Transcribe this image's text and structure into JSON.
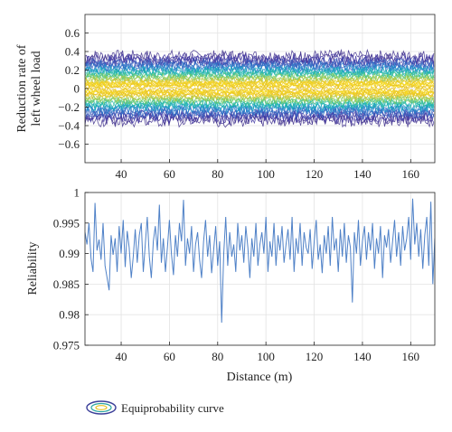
{
  "chart_data": [
    {
      "type": "contour",
      "ylabel_lines": [
        "Reduction rate of",
        "left wheel load"
      ],
      "xlim": [
        25,
        170
      ],
      "ylim": [
        -0.8,
        0.8
      ],
      "xticks": [
        40,
        60,
        80,
        100,
        120,
        140,
        160
      ],
      "yticks": [
        -0.6,
        -0.4,
        -0.2,
        0,
        0.2,
        0.4,
        0.6
      ],
      "ytick_labels": [
        "−0.6",
        "−0.4",
        "−0.2",
        "0",
        "0.2",
        "0.4",
        "0.6"
      ],
      "band": {
        "center": 0,
        "outer_half_width": 0.35,
        "core_half_width": 0.07
      },
      "grid": true
    },
    {
      "type": "line",
      "xlabel": "Distance (m)",
      "ylabel": "Reliability",
      "xlim": [
        25,
        170
      ],
      "ylim": [
        0.975,
        1.0
      ],
      "xticks": [
        40,
        60,
        80,
        100,
        120,
        140,
        160
      ],
      "yticks": [
        0.975,
        0.98,
        0.985,
        0.99,
        0.995,
        1
      ],
      "ytick_labels": [
        "0.975",
        "0.98",
        "0.985",
        "0.99",
        "0.995",
        "1"
      ],
      "series": [
        {
          "x_start": 25,
          "x_end": 170,
          "color": "#4f81c7",
          "values": [
            0.9935,
            0.9915,
            0.995,
            0.9892,
            0.987,
            0.9983,
            0.9905,
            0.9923,
            0.989,
            0.995,
            0.988,
            0.986,
            0.984,
            0.993,
            0.9898,
            0.9925,
            0.987,
            0.9945,
            0.99,
            0.9955,
            0.9878,
            0.9937,
            0.991,
            0.986,
            0.9895,
            0.994,
            0.9885,
            0.993,
            0.995,
            0.987,
            0.9915,
            0.996,
            0.9895,
            0.986,
            0.992,
            0.9945,
            0.9905,
            0.998,
            0.9885,
            0.9925,
            0.987,
            0.991,
            0.9955,
            0.99,
            0.9865,
            0.993,
            0.9895,
            0.995,
            0.992,
            0.9988,
            0.988,
            0.9925,
            0.99,
            0.9945,
            0.987,
            0.9915,
            0.9935,
            0.989,
            0.986,
            0.992,
            0.9955,
            0.9895,
            0.993,
            0.9868,
            0.9905,
            0.9945,
            0.988,
            0.992,
            0.9787,
            0.99,
            0.996,
            0.988,
            0.9935,
            0.9895,
            0.9915,
            0.987,
            0.995,
            0.9905,
            0.993,
            0.9885,
            0.9945,
            0.991,
            0.986,
            0.9925,
            0.9895,
            0.995,
            0.988,
            0.9915,
            0.9935,
            0.99,
            0.996,
            0.987,
            0.992,
            0.9895,
            0.995,
            0.988,
            0.993,
            0.9905,
            0.9945,
            0.9885,
            0.9915,
            0.994,
            0.989,
            0.996,
            0.987,
            0.9925,
            0.99,
            0.995,
            0.988,
            0.9935,
            0.991,
            0.99,
            0.994,
            0.9875,
            0.992,
            0.9955,
            0.989,
            0.9915,
            0.9868,
            0.993,
            0.99,
            0.9945,
            0.988,
            0.996,
            0.9905,
            0.9925,
            0.987,
            0.994,
            0.9895,
            0.995,
            0.9885,
            0.993,
            0.991,
            0.982,
            0.9935,
            0.99,
            0.9955,
            0.988,
            0.992,
            0.9945,
            0.989,
            0.9935,
            0.9905,
            0.995,
            0.9875,
            0.9925,
            0.99,
            0.9945,
            0.986,
            0.993,
            0.991,
            0.994,
            0.9885,
            0.992,
            0.9955,
            0.9895,
            0.9935,
            0.988,
            0.9945,
            0.9905,
            0.9925,
            0.996,
            0.989,
            0.999,
            0.9915,
            0.995,
            0.9895,
            0.994,
            0.9875,
            0.993,
            0.996,
            0.988,
            0.9985,
            0.985,
            0.9925
          ]
        }
      ],
      "grid": true
    }
  ],
  "legend": {
    "label": "Equiprobability curve"
  }
}
